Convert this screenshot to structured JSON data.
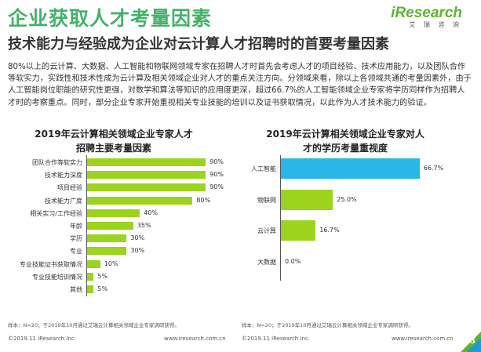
{
  "header": {
    "title": "企业获取人才考量因素",
    "subtitle": "技术能力与经验成为企业对云计算人才招聘时的首要考量因素",
    "logo_text": "iResearch",
    "logo_cn": "艾 瑞 咨 询"
  },
  "body_text": "80%以上的云计算、大数据、人工智能和物联网领域专家在招聘人才时首先会考虑人才的项目经验、技术应用能力，以及团队合作等软实力，实践性和技术性成为云计算及相关领域企业对人才的重点关注方向。分领域来看，除以上各领域共通的考量因素外，由于人工智能岗位职能的研究性更强，对数学和算法等知识的应用度更深，超过66.7%的人工智能领域企业专家将学历同样作为招聘人才时的考察重点。同时，部分企业专家开始重视相关专业技能的培训以及证书获取情况，以此作为人才技术能力的验证。",
  "chart_data": [
    {
      "type": "bar",
      "orientation": "horizontal",
      "title": "2019年云计算相关领域企业专家人才招聘主要考量因素",
      "title_line1": "2019年云计算相关领域企业专家人才",
      "title_line2": "招聘主要考量因素",
      "categories": [
        "团队合作等软实力",
        "技术能力深度",
        "项目经验",
        "技术能力广度",
        "相关实习/工作经验",
        "年龄",
        "学历",
        "专业",
        "专业技能证书获取情况",
        "专业技能培训情况",
        "其他"
      ],
      "values": [
        90,
        90,
        90,
        80,
        40,
        35,
        30,
        30,
        10,
        5,
        5
      ],
      "value_labels": [
        "90%",
        "90%",
        "90%",
        "80%",
        "40%",
        "35%",
        "30%",
        "30%",
        "10%",
        "5%",
        "5%"
      ],
      "xlim": [
        0,
        100
      ],
      "unit": "%",
      "color": "#9bd31d",
      "note": "样本：N=20；于2019年10月通过艾瑞云计算相关领域企业专家调研获得。"
    },
    {
      "type": "bar",
      "orientation": "horizontal",
      "title": "2019年云计算相关领域企业专家对人才的学历考量重视度",
      "title_line1": "2019年云计算相关领域企业专家对人",
      "title_line2": "才的学历考量重视度",
      "categories": [
        "人工智能",
        "物联网",
        "云计算",
        "大数据"
      ],
      "values": [
        66.7,
        25.0,
        16.7,
        0.0
      ],
      "value_labels": [
        "66.7%",
        "25.0%",
        "16.7%",
        "0.0%"
      ],
      "xlim": [
        0,
        100
      ],
      "unit": "%",
      "colors": [
        "#29b6e8",
        "#9bd31d",
        "#9bd31d",
        "#9bd31d"
      ],
      "note": "样本：N=20；于2019年10月通过艾瑞云计算相关领域企业专家调研获得。"
    }
  ],
  "footer": {
    "left_copyright": "©2019.11 iResearch Inc.",
    "left_url": "www.iresearch.com.cn",
    "right_copyright": "©2019.11 iResearch Inc.",
    "right_url": "www.iresearch.com.cn",
    "page_number": "25"
  },
  "colors": {
    "title_green": "#44b26a",
    "bar_green": "#9bd31d",
    "bar_blue": "#29b6e8",
    "corner_green": "#5cb531",
    "corner_blue": "#1f9ad6"
  }
}
